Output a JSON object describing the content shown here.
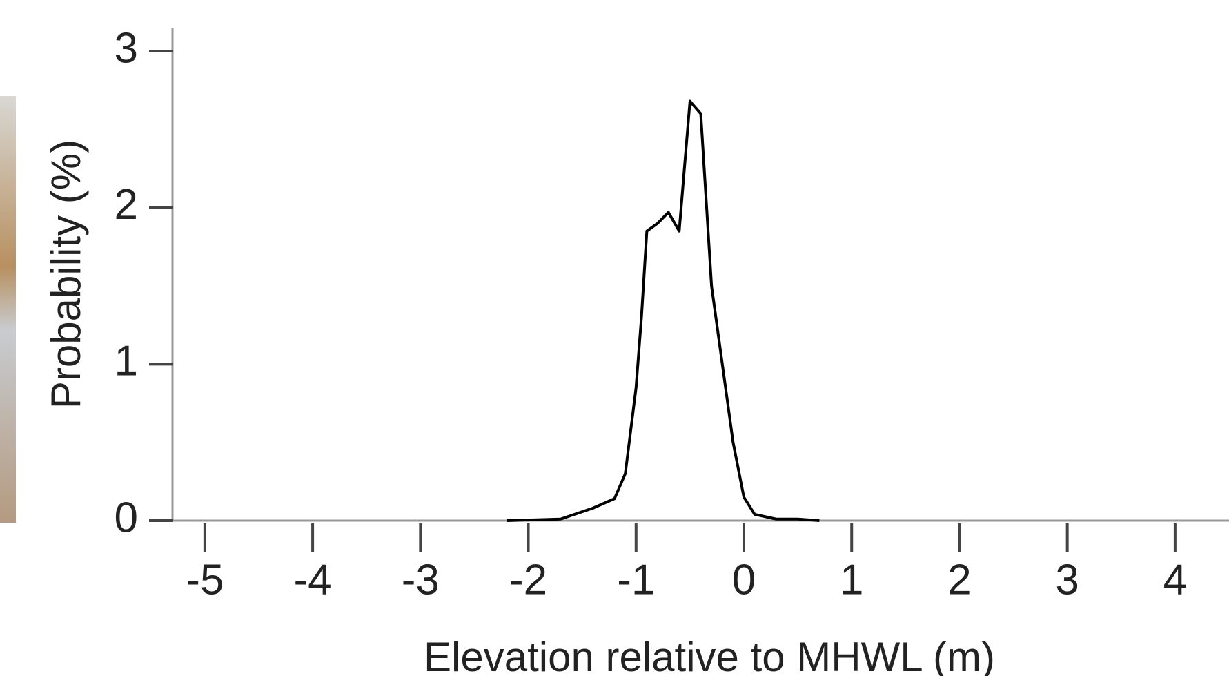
{
  "chart_data": {
    "type": "line",
    "x_label": "Elevation relative to MHWL (m)",
    "y_label": "Probability (%)",
    "x": [
      -2.2,
      -1.7,
      -1.4,
      -1.2,
      -1.1,
      -1.0,
      -0.95,
      -0.9,
      -0.8,
      -0.7,
      -0.6,
      -0.5,
      -0.4,
      -0.3,
      -0.2,
      -0.1,
      0,
      0.1,
      0.3,
      0.5,
      0.7
    ],
    "series": [
      {
        "color": "#000000",
        "values": [
          0,
          0.01,
          0.08,
          0.14,
          0.3,
          0.85,
          1.3,
          1.85,
          1.9,
          1.97,
          1.85,
          2.68,
          2.6,
          1.5,
          1.0,
          0.5,
          0.15,
          0.04,
          0.01,
          0.01,
          0
        ]
      }
    ],
    "xlim": [
      -5.3,
      4.5
    ],
    "ylim": [
      0,
      3.15
    ],
    "xticks": [
      -5,
      -4,
      -3,
      -2,
      -1,
      0,
      1,
      2,
      3,
      4
    ],
    "yticks": [
      0,
      1,
      2,
      3
    ]
  }
}
